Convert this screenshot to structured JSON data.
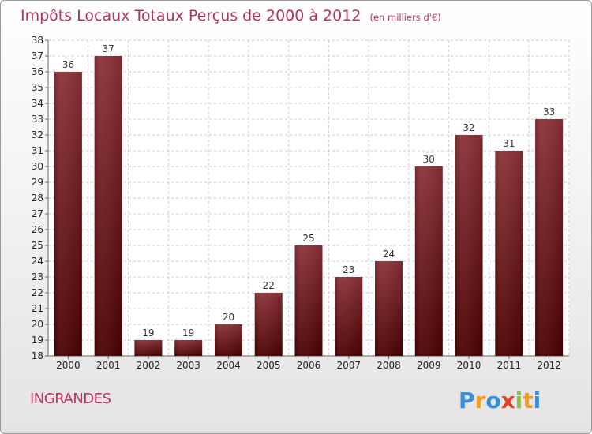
{
  "title": "Impôts Locaux Totaux Perçus de 2000 à 2012",
  "subtitle": "(en milliers d'€)",
  "commune": "INGRANDES",
  "logo_text": "Proxiti",
  "colors": {
    "bar_top": "#8a3036",
    "bar_bottom": "#4a0000",
    "title": "#b4335a",
    "grid": "#cccccc"
  },
  "chart_data": {
    "type": "bar",
    "title": "Impôts Locaux Totaux Perçus de 2000 à 2012",
    "unit": "en milliers d'€",
    "xlabel": "",
    "ylabel": "",
    "categories": [
      "2000",
      "2001",
      "2002",
      "2003",
      "2004",
      "2005",
      "2006",
      "2007",
      "2008",
      "2009",
      "2010",
      "2011",
      "2012"
    ],
    "values": [
      36,
      37,
      19,
      19,
      20,
      22,
      25,
      23,
      24,
      30,
      32,
      31,
      33
    ],
    "ylim": [
      18,
      38
    ],
    "yticks": [
      18,
      19,
      20,
      21,
      22,
      23,
      24,
      25,
      26,
      27,
      28,
      29,
      30,
      31,
      32,
      33,
      34,
      35,
      36,
      37,
      38
    ],
    "grid": true,
    "data_labels": true
  }
}
